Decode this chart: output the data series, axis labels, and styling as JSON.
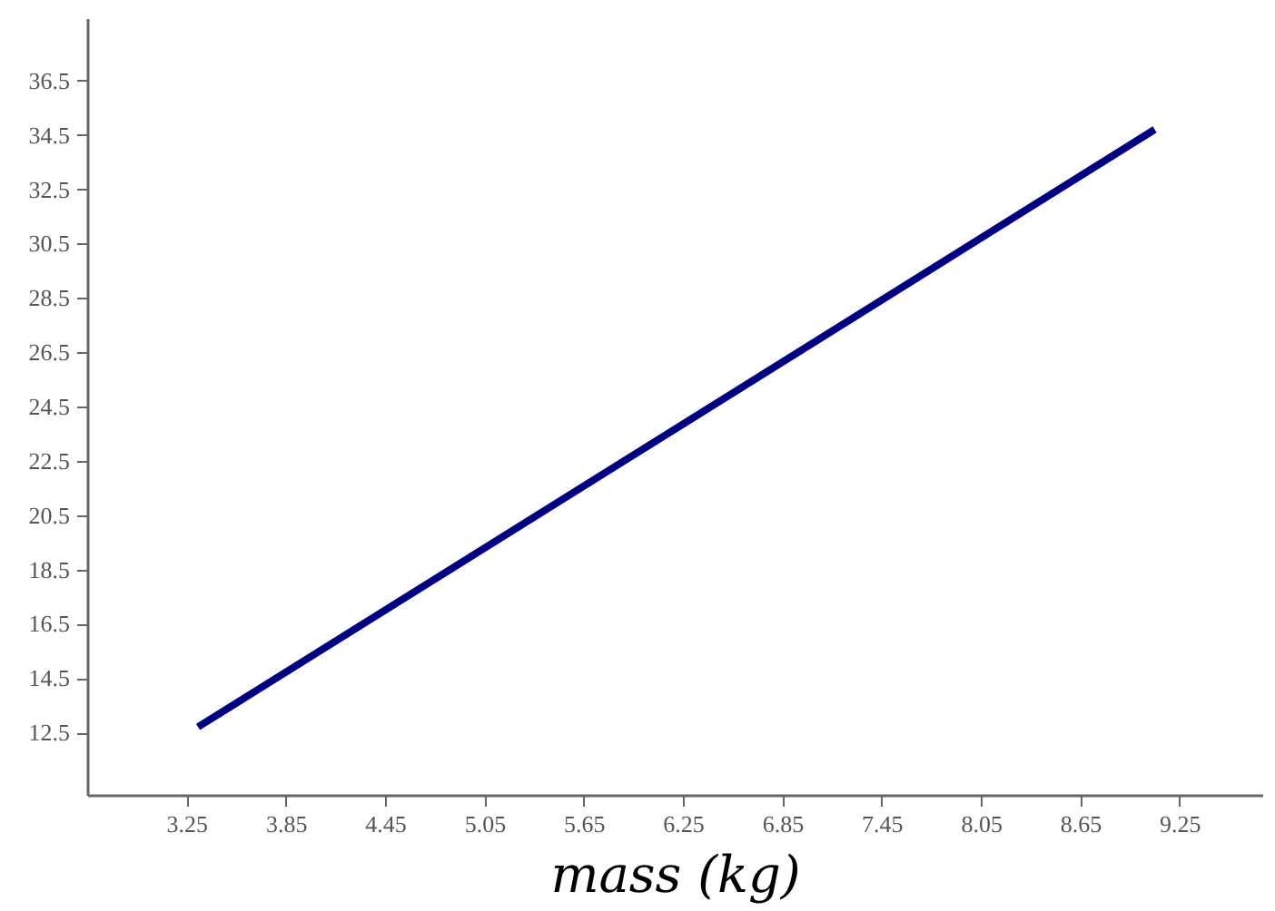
{
  "chart_data": {
    "type": "line",
    "xlabel": "mass (kg)",
    "x": [
      3.32,
      9.1
    ],
    "series": [
      {
        "color": "#000080",
        "values": [
          12.7,
          34.7
        ]
      }
    ],
    "xlim": [
      2.65,
      9.75
    ],
    "xticks": [
      3.25,
      3.85,
      4.45,
      5.05,
      5.65,
      6.25,
      6.85,
      7.45,
      8.05,
      8.65,
      9.25
    ],
    "ylim": [
      10.2,
      38.8
    ],
    "yticks": [
      12.5,
      14.5,
      16.5,
      18.5,
      20.5,
      22.5,
      24.5,
      26.5,
      28.5,
      30.5,
      32.5,
      34.5,
      36.5
    ],
    "grid": false,
    "marker": "none",
    "line_style": "solid"
  }
}
